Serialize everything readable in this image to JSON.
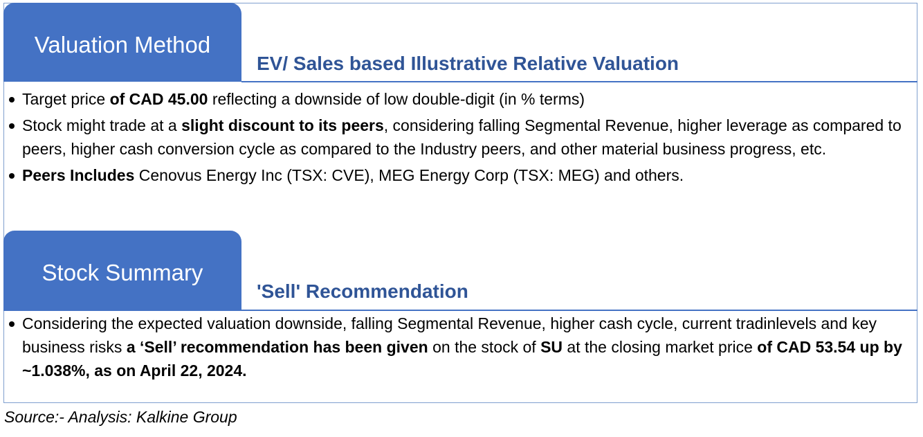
{
  "valuation": {
    "tab_title": "Valuation Method",
    "subtitle": "EV/ Sales based Illustrative Relative Valuation",
    "bullets": [
      {
        "parts": [
          {
            "text": "Target price ",
            "bold": false
          },
          {
            "text": "of CAD 45.00",
            "bold": true
          },
          {
            "text": " reflecting a downside of low double-digit (in % terms)",
            "bold": false
          }
        ]
      },
      {
        "parts": [
          {
            "text": "Stock might trade at a ",
            "bold": false
          },
          {
            "text": "slight discount to its peers",
            "bold": true
          },
          {
            "text": ", considering  falling  Segmental Revenue, higher leverage as compared to peers, higher cash conversion cycle as compared to the Industry peers, and other material business progress, etc.",
            "bold": false
          }
        ]
      },
      {
        "parts": [
          {
            "text": "Peers Includes",
            "bold": true
          },
          {
            "text": "  Cenovus Energy Inc (TSX: CVE), MEG Energy Corp (TSX: MEG) and others.",
            "bold": false
          }
        ]
      }
    ]
  },
  "summary": {
    "tab_title": "Stock Summary",
    "subtitle": "'Sell' Recommendation",
    "bullets": [
      {
        "parts": [
          {
            "text": "Considering the expected valuation downside, falling Segmental Revenue, higher cash cycle, current tradinlevels and key business risks ",
            "bold": false
          },
          {
            "text": "a ‘Sell’ recommendation has been given",
            "bold": true
          },
          {
            "text": " on the stock of ",
            "bold": false
          },
          {
            "text": "SU",
            "bold": true
          },
          {
            "text": " at the closing market price ",
            "bold": false
          },
          {
            "text": "of CAD 53.54 up by ~1.038%, as on April  22, 2024.",
            "bold": true
          }
        ]
      }
    ]
  },
  "source": "Source:- Analysis: Kalkine Group"
}
